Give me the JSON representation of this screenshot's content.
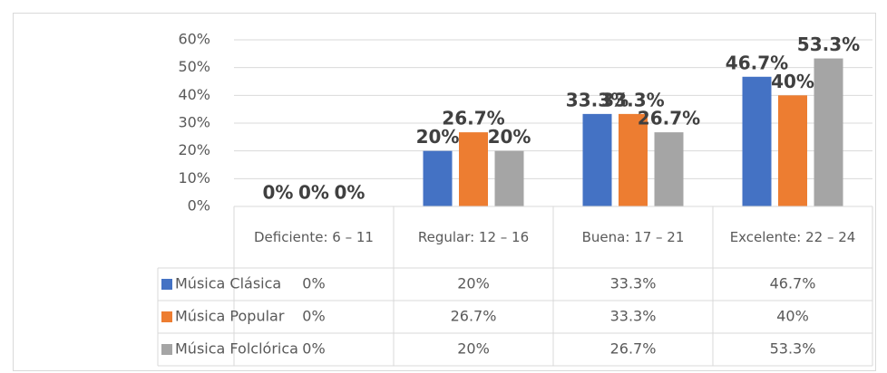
{
  "chart_data": {
    "type": "bar",
    "categories": [
      "Deficiente: 6 – 11",
      "Regular: 12 – 16",
      "Buena: 17 – 21",
      "Excelente: 22 – 24"
    ],
    "series": [
      {
        "name": "Música Clásica",
        "color": "#4472c4",
        "values": [
          0,
          20,
          33.3,
          46.7
        ],
        "value_labels": [
          "0%",
          "20%",
          "33.3%",
          "46.7%"
        ]
      },
      {
        "name": "Música Popular",
        "color": "#ed7d31",
        "values": [
          0,
          26.7,
          33.3,
          40
        ],
        "value_labels": [
          "0%",
          "26.7%",
          "33.3%",
          "40%"
        ]
      },
      {
        "name": "Música Folclórica",
        "color": "#a5a5a5",
        "values": [
          0,
          20,
          26.7,
          53.3
        ],
        "value_labels": [
          "0%",
          "20%",
          "26.7%",
          "53.3%"
        ]
      }
    ],
    "ylim": [
      0,
      60
    ],
    "yticks": [
      {
        "value": 0,
        "label": "0%"
      },
      {
        "value": 10,
        "label": "10%"
      },
      {
        "value": 20,
        "label": "20%"
      },
      {
        "value": 30,
        "label": "30%"
      },
      {
        "value": 40,
        "label": "40%"
      },
      {
        "value": 50,
        "label": "50%"
      },
      {
        "value": 60,
        "label": "60%"
      }
    ],
    "grid": true,
    "data_table": true
  }
}
